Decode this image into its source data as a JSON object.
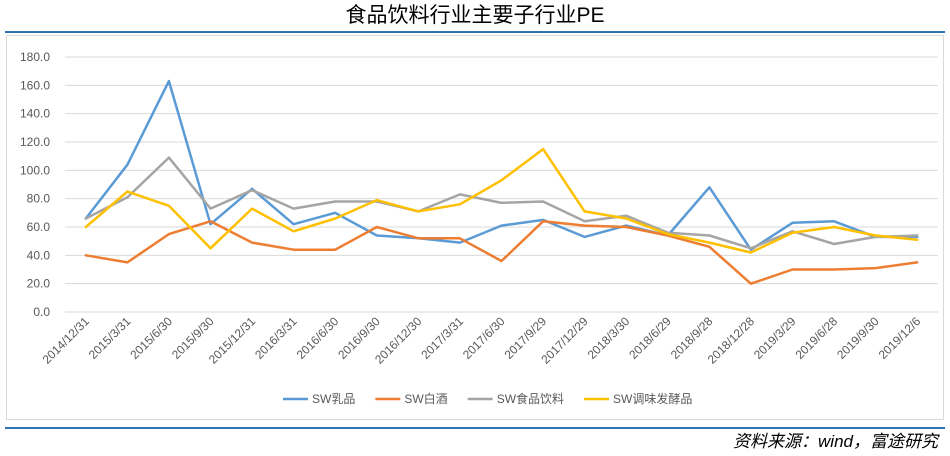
{
  "source": "资料来源：wind，富途研究",
  "colors": {
    "rule": "#2E75B6",
    "grid": "#D9D9D9",
    "frame": "#D9D9D9",
    "axis_text": "#595959",
    "legend_text": "#595959"
  },
  "chart_data": {
    "type": "line",
    "title": "食品饮料行业主要子行业PE",
    "xlabel": "",
    "ylabel": "",
    "ylim": [
      0,
      180
    ],
    "yticks": [
      "0.0",
      "20.0",
      "40.0",
      "60.0",
      "80.0",
      "100.0",
      "120.0",
      "140.0",
      "160.0",
      "180.0"
    ],
    "grid": true,
    "legend_position": "bottom",
    "categories": [
      "2014/12/31",
      "2015/3/31",
      "2015/6/30",
      "2015/9/30",
      "2015/12/31",
      "2016/3/31",
      "2016/6/30",
      "2016/9/30",
      "2016/12/30",
      "2017/3/31",
      "2017/6/30",
      "2017/9/29",
      "2017/12/29",
      "2018/3/30",
      "2018/6/29",
      "2018/9/28",
      "2018/12/28",
      "2019/3/29",
      "2019/6/28",
      "2019/9/30",
      "2019/12/6"
    ],
    "series": [
      {
        "name": "SW乳品",
        "color": "#5B9BD5",
        "values": [
          66,
          104,
          163,
          62,
          87,
          62,
          70,
          54,
          52,
          49,
          61,
          65,
          53,
          61,
          54,
          88,
          44,
          63,
          64,
          53,
          53
        ]
      },
      {
        "name": "SW白酒",
        "color": "#ED7D31",
        "values": [
          40,
          35,
          55,
          64,
          49,
          44,
          44,
          60,
          52,
          52,
          36,
          64,
          61,
          60,
          54,
          46,
          20,
          30,
          30,
          31,
          35
        ]
      },
      {
        "name": "SW食品饮料",
        "color": "#A5A5A5",
        "values": [
          66,
          81,
          109,
          73,
          86,
          73,
          78,
          78,
          71,
          83,
          77,
          78,
          64,
          68,
          56,
          54,
          45,
          57,
          48,
          53,
          54
        ]
      },
      {
        "name": "SW调味发酵品",
        "color": "#FFC000",
        "values": [
          60,
          85,
          75,
          45,
          73,
          57,
          66,
          79,
          71,
          76,
          93,
          115,
          71,
          66,
          55,
          49,
          42,
          56,
          60,
          54,
          51
        ]
      }
    ]
  }
}
